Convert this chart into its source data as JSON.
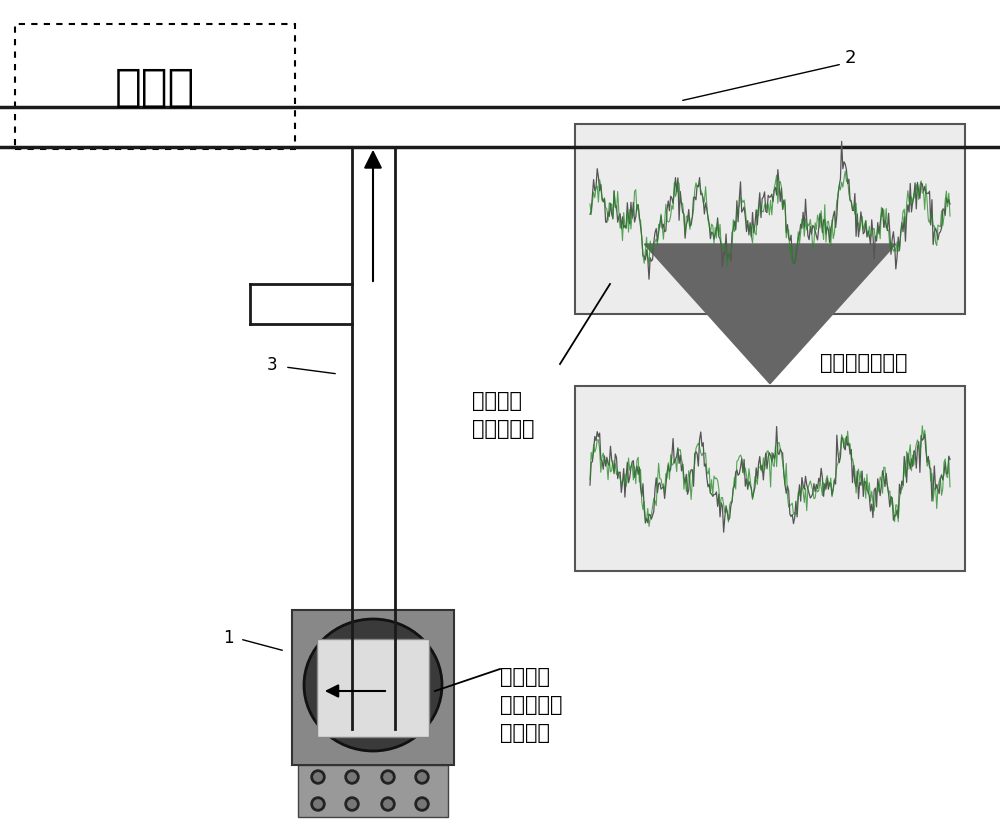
{
  "title_text": "正常时",
  "label_2": "2",
  "label_3": "3",
  "label_1": "1",
  "text_fluid": "工艺流体\n压力的晃动",
  "text_transmit": "几乎原样地传达",
  "text_pressure": "压力信号\n发生器中的\n压力晃动",
  "pipe_color": "#1a1a1a",
  "signal_color1": "#555555",
  "signal_color2": "#228822"
}
